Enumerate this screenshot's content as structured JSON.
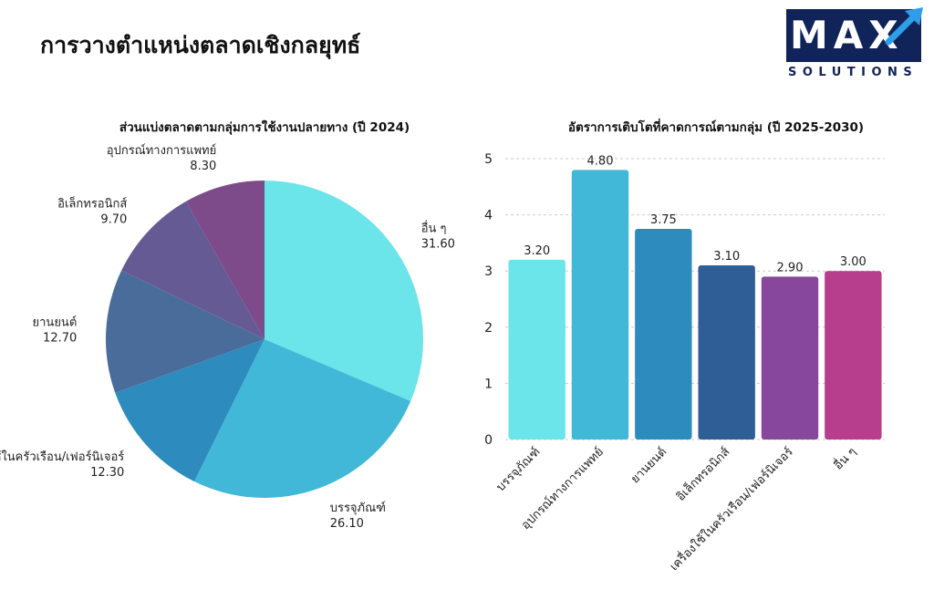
{
  "page": {
    "title": "การวางตำแหน่งตลาดเชิงกลยุทธ์"
  },
  "logo": {
    "main": "MAX",
    "sub": "SOLUTIONS",
    "icon": "arrow-icon",
    "color": "#11245a",
    "accent": "#2f9ee8"
  },
  "chart_data": [
    {
      "type": "pie",
      "title": "ส่วนแบ่งตลาดตามกลุ่มการใช้งานปลายทาง (ปี 2024)",
      "categories": [
        "อื่น ๆ",
        "บรรจุภัณฑ์",
        "เครื่องใช้ในครัวเรือน/เฟอร์นิเจอร์",
        "ยานยนต์",
        "อิเล็กทรอนิกส์",
        "อุปกรณ์ทางการแพทย์"
      ],
      "values": [
        31.6,
        26.1,
        12.3,
        12.7,
        9.7,
        8.3
      ],
      "value_labels": [
        "31.60",
        "26.10",
        "12.30",
        "12.70",
        "9.70",
        "8.30"
      ],
      "colors": [
        "#6be4ea",
        "#42b8d8",
        "#2e8bbd",
        "#4a6c9b",
        "#665a94",
        "#7d4a8a"
      ]
    },
    {
      "type": "bar",
      "title": "อัตราการเติบโตที่คาดการณ์ตามกลุ่ม (ปี 2025-2030)",
      "categories": [
        "บรรจุภัณฑ์",
        "อุปกรณ์ทางการแพทย์",
        "ยานยนต์",
        "อิเล็กทรอนิกส์",
        "เครื่องใช้ในครัวเรือน/เฟอร์นิเจอร์",
        "อื่น ๆ"
      ],
      "values": [
        3.2,
        4.8,
        3.75,
        3.1,
        2.9,
        3.0
      ],
      "value_labels": [
        "3.20",
        "4.80",
        "3.75",
        "3.10",
        "2.90",
        "3.00"
      ],
      "colors": [
        "#6be4ea",
        "#42b8d8",
        "#2e8bbd",
        "#2f5e96",
        "#87479c",
        "#b63e8d"
      ],
      "ylim": [
        0,
        5
      ],
      "yticks": [
        "0",
        "1",
        "2",
        "3",
        "4",
        "5"
      ],
      "grid": true
    }
  ]
}
